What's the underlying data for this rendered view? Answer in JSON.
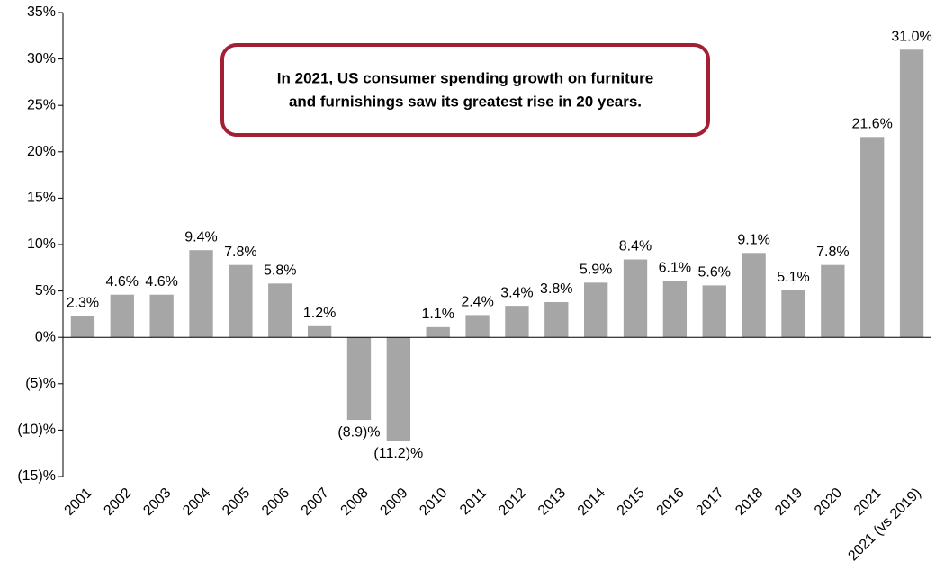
{
  "chart_data": {
    "type": "bar",
    "annotation": [
      "In 2021, US consumer spending growth on furniture",
      "and furnishings saw its greatest rise in 20 years."
    ],
    "categories": [
      "2001",
      "2002",
      "2003",
      "2004",
      "2005",
      "2006",
      "2007",
      "2008",
      "2009",
      "2010",
      "2011",
      "2012",
      "2013",
      "2014",
      "2015",
      "2016",
      "2017",
      "2018",
      "2019",
      "2020",
      "2021",
      "2021 (vs 2019)"
    ],
    "values": [
      2.3,
      4.6,
      4.6,
      9.4,
      7.8,
      5.8,
      1.2,
      -8.9,
      -11.2,
      1.1,
      2.4,
      3.4,
      3.8,
      5.9,
      8.4,
      6.1,
      5.6,
      9.1,
      5.1,
      7.8,
      21.6,
      31.0
    ],
    "value_labels": [
      "2.3%",
      "4.6%",
      "4.6%",
      "9.4%",
      "7.8%",
      "5.8%",
      "1.2%",
      "(8.9)%",
      "(11.2)%",
      "1.1%",
      "2.4%",
      "3.4%",
      "3.8%",
      "5.9%",
      "8.4%",
      "6.1%",
      "5.6%",
      "9.1%",
      "5.1%",
      "7.8%",
      "21.6%",
      "31.0%"
    ],
    "color": "#a6a6a6",
    "ylim": [
      -15,
      35
    ],
    "yticks": [
      {
        "value": -15,
        "label": "(15)%"
      },
      {
        "value": -10,
        "label": "(10)%"
      },
      {
        "value": -5,
        "label": "(5)%"
      },
      {
        "value": 0,
        "label": "0%"
      },
      {
        "value": 5,
        "label": "5%"
      },
      {
        "value": 10,
        "label": "10%"
      },
      {
        "value": 15,
        "label": "15%"
      },
      {
        "value": 20,
        "label": "20%"
      },
      {
        "value": 25,
        "label": "25%"
      },
      {
        "value": 30,
        "label": "30%"
      },
      {
        "value": 35,
        "label": "35%"
      }
    ],
    "grid": false
  }
}
